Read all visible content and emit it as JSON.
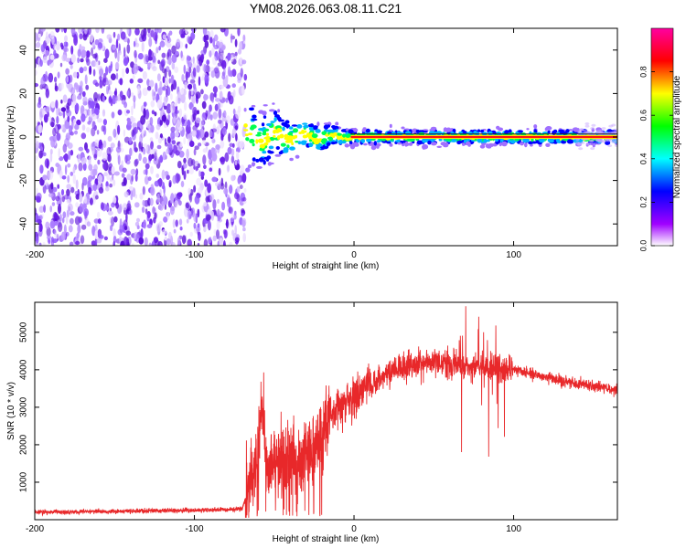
{
  "title": "YM08.2026.063.08.11.C21",
  "chart_data": [
    {
      "type": "heatmap",
      "xlabel": "Height of straight line (km)",
      "ylabel": "Frequency (Hz)",
      "xlim": [
        -200,
        165
      ],
      "ylim": [
        -50,
        50
      ],
      "x_ticks": [
        {
          "value": -200,
          "label": "-200"
        },
        {
          "value": -100,
          "label": "-100"
        },
        {
          "value": 0,
          "label": "0"
        },
        {
          "value": 100,
          "label": "100"
        }
      ],
      "y_ticks": [
        {
          "value": -40,
          "label": "-40"
        },
        {
          "value": -20,
          "label": "-20"
        },
        {
          "value": 0,
          "label": "0"
        },
        {
          "value": 20,
          "label": "20"
        },
        {
          "value": 40,
          "label": "40"
        }
      ],
      "noise_region_x": [
        -200,
        -68
      ],
      "signal_region_x": [
        -68,
        165
      ],
      "signal_frequency": 0,
      "colorbar": {
        "label": "Normalized spectral amplitude",
        "range": [
          0,
          1
        ],
        "ticks": [
          {
            "value": 0.0,
            "label": "0.0"
          },
          {
            "value": 0.2,
            "label": "0.2"
          },
          {
            "value": 0.4,
            "label": "0.4"
          },
          {
            "value": 0.6,
            "label": "0.6"
          },
          {
            "value": 0.8,
            "label": "0.8"
          }
        ],
        "colors": [
          "#ffffff",
          "#a000ff",
          "#0000ff",
          "#00ffff",
          "#00ff00",
          "#ffff00",
          "#ff0000",
          "#ff00a0"
        ]
      }
    },
    {
      "type": "line",
      "xlabel": "Height of straight line (km)",
      "ylabel": "SNR (10 * v/v)",
      "xlim": [
        -200,
        165
      ],
      "ylim": [
        0,
        5800
      ],
      "x_ticks": [
        {
          "value": -200,
          "label": "-200"
        },
        {
          "value": -100,
          "label": "-100"
        },
        {
          "value": 0,
          "label": "0"
        },
        {
          "value": 100,
          "label": "100"
        }
      ],
      "y_ticks": [
        {
          "value": 1000,
          "label": "1000"
        },
        {
          "value": 2000,
          "label": "2000"
        },
        {
          "value": 3000,
          "label": "3000"
        },
        {
          "value": 4000,
          "label": "4000"
        },
        {
          "value": 5000,
          "label": "5000"
        }
      ],
      "color": "#e8282a",
      "x": [
        -200,
        -180,
        -160,
        -140,
        -120,
        -100,
        -80,
        -70,
        -65,
        -60,
        -57,
        -55,
        -50,
        -45,
        -40,
        -35,
        -30,
        -25,
        -20,
        -15,
        -10,
        -5,
        0,
        10,
        20,
        30,
        40,
        50,
        60,
        70,
        80,
        85,
        90,
        100,
        110,
        120,
        130,
        140,
        150,
        165
      ],
      "values": [
        200,
        210,
        220,
        230,
        240,
        250,
        270,
        300,
        1000,
        2000,
        3000,
        1500,
        1600,
        1400,
        1700,
        1500,
        1900,
        1800,
        2300,
        2800,
        3000,
        3100,
        3250,
        3600,
        3900,
        4100,
        4150,
        4200,
        4150,
        4100,
        4100,
        4050,
        4100,
        4000,
        3900,
        3800,
        3700,
        3650,
        3550,
        3450
      ]
    }
  ]
}
